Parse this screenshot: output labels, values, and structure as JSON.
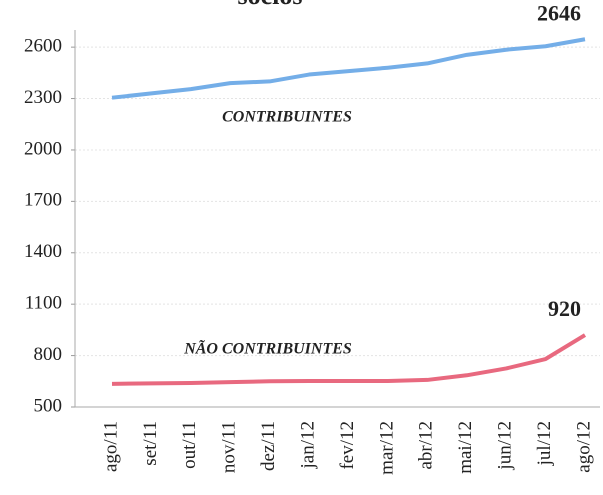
{
  "chart_data": {
    "type": "line",
    "title": "sócios",
    "categories": [
      "ago/11",
      "set/11",
      "out/11",
      "nov/11",
      "dez/11",
      "jan/12",
      "fev/12",
      "mar/12",
      "abr/12",
      "mai/12",
      "jun/12",
      "jul/12",
      "ago/12"
    ],
    "series": [
      {
        "name": "CONTRIBUINTES",
        "color": "#74aee8",
        "values": [
          2305,
          2330,
          2355,
          2390,
          2400,
          2440,
          2460,
          2480,
          2505,
          2555,
          2585,
          2605,
          2646
        ]
      },
      {
        "name": "NÃO CONTRIBUINTES",
        "color": "#e8697f",
        "values": [
          635,
          638,
          640,
          645,
          650,
          652,
          652,
          652,
          658,
          685,
          725,
          780,
          920
        ]
      }
    ],
    "ylim": [
      500,
      2700
    ],
    "yticks": [
      500,
      800,
      1100,
      1400,
      1700,
      2000,
      2300,
      2600
    ],
    "grid": true
  }
}
